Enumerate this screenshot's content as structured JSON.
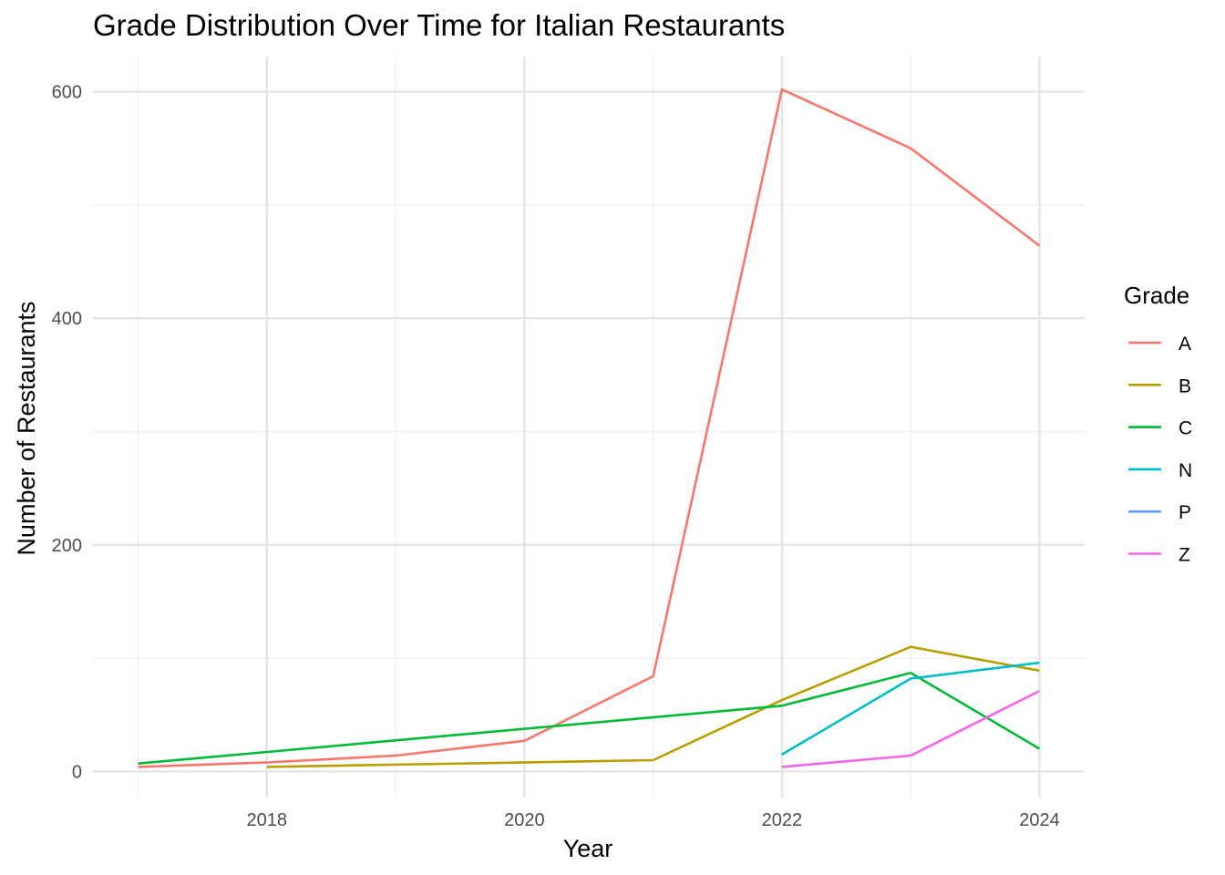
{
  "chart_data": {
    "type": "line",
    "title": "Grade Distribution Over Time for Italian Restaurants",
    "xlabel": "Year",
    "ylabel": "Number of Restaurants",
    "x_ticks": [
      2018,
      2020,
      2022,
      2024
    ],
    "y_ticks": [
      0,
      200,
      400,
      600
    ],
    "xlim": [
      2016.65,
      2024.35
    ],
    "ylim": [
      -23,
      631
    ],
    "grid": true,
    "legend": {
      "title": "Grade",
      "position": "right"
    },
    "series": [
      {
        "name": "A",
        "color": "#F8766D",
        "points": [
          [
            2017,
            4
          ],
          [
            2018,
            8
          ],
          [
            2019,
            14
          ],
          [
            2020,
            27
          ],
          [
            2021,
            84
          ],
          [
            2022,
            602
          ],
          [
            2023,
            550
          ],
          [
            2024,
            464
          ]
        ]
      },
      {
        "name": "B",
        "color": "#B79F00",
        "points": [
          [
            2018,
            4
          ],
          [
            2021,
            10
          ],
          [
            2022,
            63
          ],
          [
            2023,
            110
          ],
          [
            2024,
            89
          ]
        ]
      },
      {
        "name": "C",
        "color": "#00BA38",
        "points": [
          [
            2017,
            7
          ],
          [
            2022,
            58
          ],
          [
            2023,
            87
          ],
          [
            2024,
            20
          ]
        ]
      },
      {
        "name": "N",
        "color": "#00BFC4",
        "points": [
          [
            2022,
            15
          ],
          [
            2023,
            82
          ],
          [
            2024,
            96
          ]
        ]
      },
      {
        "name": "P",
        "color": "#619CFF",
        "points": []
      },
      {
        "name": "Z",
        "color": "#F564E3",
        "points": [
          [
            2022,
            4
          ],
          [
            2023,
            14
          ],
          [
            2024,
            71
          ]
        ]
      }
    ]
  }
}
